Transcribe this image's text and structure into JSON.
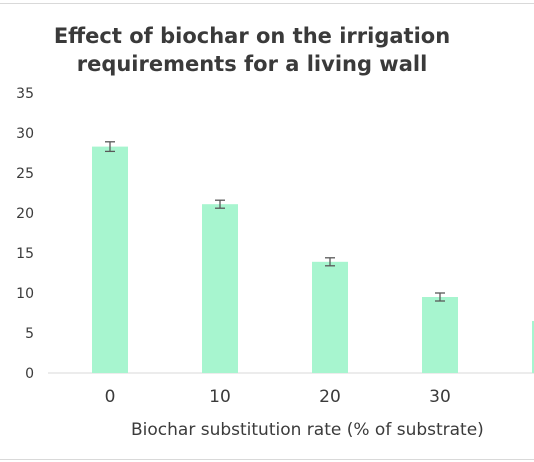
{
  "chart_data": {
    "type": "bar",
    "title_lines": [
      "Effect of biochar on the irrigation",
      "requirements for a living wall"
    ],
    "xlabel": "Biochar substitution rate (% of substrate)",
    "ylabel": "",
    "categories": [
      "0",
      "10",
      "20",
      "30",
      ""
    ],
    "values": [
      28.3,
      21.1,
      13.9,
      9.5,
      6.5
    ],
    "errors": [
      0.6,
      0.5,
      0.5,
      0.5,
      null
    ],
    "yticks": [
      0,
      5,
      10,
      15,
      20,
      25,
      30,
      35
    ],
    "ylim": [
      0,
      35
    ],
    "bar_color": "#a7f5cf",
    "error_color": "#595959",
    "axis_color": "#d9d9d9",
    "grid": false,
    "legend": "none"
  }
}
